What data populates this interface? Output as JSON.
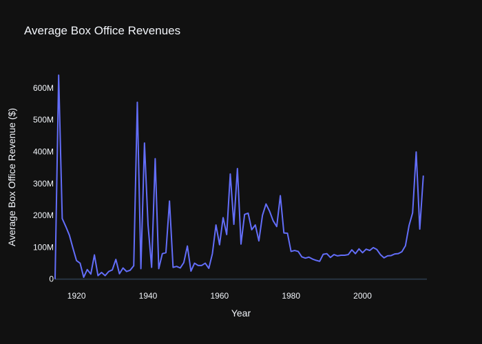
{
  "chart_data": {
    "type": "line",
    "title": "Average Box Office Revenues",
    "xlabel": "Year",
    "ylabel": "Average Box Office Revenue ($)",
    "xlim": [
      1914,
      2018
    ],
    "ylim": [
      -20000000,
      660000000
    ],
    "grid": false,
    "x_ticks": [
      {
        "value": 1920,
        "label": "1920"
      },
      {
        "value": 1940,
        "label": "1940"
      },
      {
        "value": 1960,
        "label": "1960"
      },
      {
        "value": 1980,
        "label": "1980"
      },
      {
        "value": 2000,
        "label": "2000"
      }
    ],
    "y_ticks": [
      {
        "value": 0,
        "label": "0"
      },
      {
        "value": 100000000,
        "label": "100M"
      },
      {
        "value": 200000000,
        "label": "200M"
      },
      {
        "value": 300000000,
        "label": "300M"
      },
      {
        "value": 400000000,
        "label": "400M"
      },
      {
        "value": 500000000,
        "label": "500M"
      },
      {
        "value": 600000000,
        "label": "600M"
      }
    ],
    "series": [
      {
        "color": "#636efa",
        "x": [
          1914,
          1915,
          1916,
          1917,
          1918,
          1919,
          1920,
          1921,
          1922,
          1923,
          1924,
          1925,
          1926,
          1927,
          1928,
          1929,
          1930,
          1931,
          1932,
          1933,
          1934,
          1935,
          1936,
          1937,
          1938,
          1939,
          1940,
          1941,
          1942,
          1943,
          1944,
          1945,
          1946,
          1947,
          1948,
          1949,
          1950,
          1951,
          1952,
          1953,
          1954,
          1955,
          1956,
          1957,
          1958,
          1959,
          1960,
          1961,
          1962,
          1963,
          1964,
          1965,
          1966,
          1967,
          1968,
          1969,
          1970,
          1971,
          1972,
          1973,
          1974,
          1975,
          1976,
          1977,
          1978,
          1979,
          1980,
          1981,
          1982,
          1983,
          1984,
          1985,
          1986,
          1987,
          1988,
          1989,
          1990,
          1991,
          1992,
          1993,
          1994,
          1995,
          1996,
          1997,
          1998,
          1999,
          2000,
          2001,
          2002,
          2003,
          2004,
          2005,
          2006,
          2007,
          2008,
          2009,
          2010,
          2011,
          2012,
          2013,
          2014,
          2015,
          2016,
          2017
        ],
        "y": [
          0,
          640000000,
          190000000,
          165000000,
          138000000,
          97000000,
          58000000,
          50000000,
          6000000,
          30000000,
          16000000,
          76000000,
          11000000,
          21000000,
          11000000,
          24000000,
          29000000,
          62000000,
          17000000,
          35000000,
          24000000,
          28000000,
          42000000,
          555000000,
          33000000,
          427000000,
          170000000,
          37000000,
          378000000,
          33000000,
          80000000,
          83000000,
          245000000,
          37000000,
          40000000,
          35000000,
          52000000,
          104000000,
          25000000,
          50000000,
          43000000,
          43000000,
          50000000,
          34000000,
          80000000,
          170000000,
          108000000,
          193000000,
          140000000,
          330000000,
          172000000,
          347000000,
          110000000,
          203000000,
          207000000,
          155000000,
          170000000,
          120000000,
          200000000,
          236000000,
          213000000,
          183000000,
          165000000,
          262000000,
          145000000,
          144000000,
          87000000,
          90000000,
          87000000,
          70000000,
          66000000,
          69000000,
          63000000,
          59000000,
          56000000,
          78000000,
          80000000,
          68000000,
          77000000,
          73000000,
          75000000,
          75000000,
          77000000,
          92000000,
          80000000,
          95000000,
          83000000,
          94000000,
          90000000,
          99000000,
          93000000,
          77000000,
          67000000,
          73000000,
          74000000,
          79000000,
          80000000,
          86000000,
          105000000,
          168000000,
          208000000,
          399000000,
          157000000,
          325000000
        ]
      }
    ]
  }
}
